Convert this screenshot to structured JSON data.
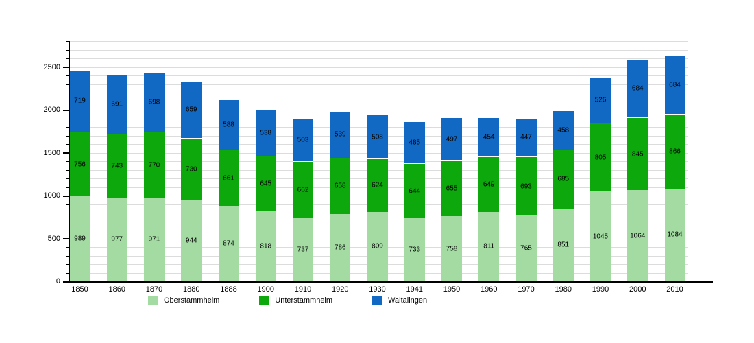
{
  "chart_data": {
    "type": "bar",
    "stacked": true,
    "title": "",
    "categories": [
      "1850",
      "1860",
      "1870",
      "1880",
      "1888",
      "1900",
      "1910",
      "1920",
      "1930",
      "1941",
      "1950",
      "1960",
      "1970",
      "1980",
      "1990",
      "2000",
      "2010"
    ],
    "series": [
      {
        "name": "Oberstammheim",
        "color": "#a3dba3",
        "values": [
          989,
          977,
          971,
          944,
          874,
          818,
          737,
          786,
          809,
          733,
          758,
          811,
          765,
          851,
          1045,
          1064,
          1084
        ]
      },
      {
        "name": "Unterstammheim",
        "color": "#0ca80c",
        "values": [
          756,
          743,
          770,
          730,
          661,
          645,
          662,
          658,
          624,
          644,
          655,
          649,
          693,
          685,
          805,
          845,
          866
        ]
      },
      {
        "name": "Waltalingen",
        "color": "#1269c4",
        "values": [
          719,
          691,
          698,
          659,
          588,
          538,
          503,
          539,
          508,
          485,
          497,
          454,
          447,
          458,
          526,
          684,
          684
        ]
      }
    ],
    "ylim": [
      0,
      2800
    ],
    "yticks_labeled": [
      0,
      500,
      1000,
      1500,
      2000,
      2500
    ],
    "ytick_minor_step": 100,
    "grid": "horizontal",
    "legend_position": "bottom",
    "value_labels": "inside-center"
  },
  "colors": {
    "gridline": "#dcdcdc",
    "axis": "#000000",
    "text": "#000000",
    "background": "#ffffff"
  }
}
